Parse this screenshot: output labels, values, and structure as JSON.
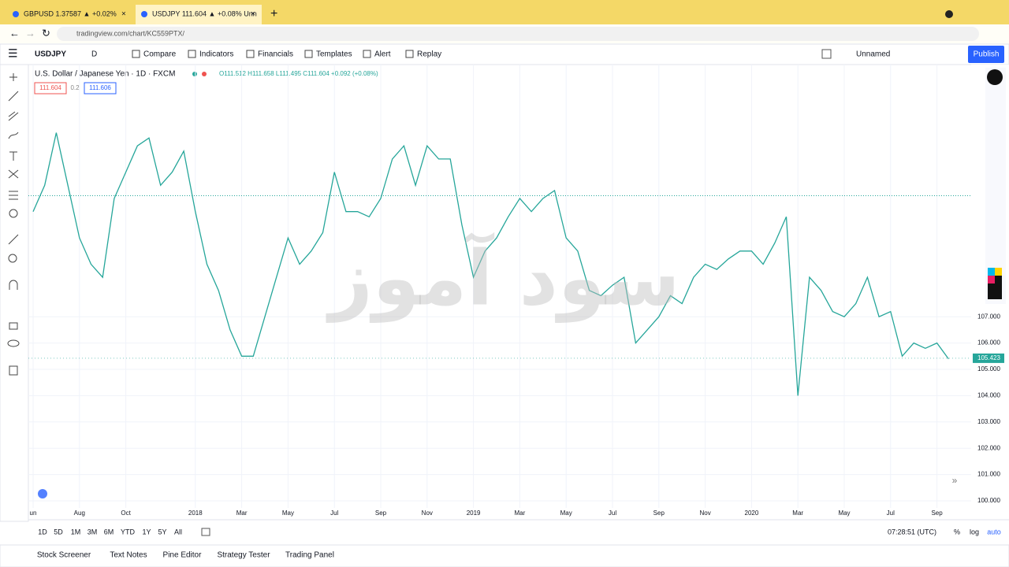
{
  "browser": {
    "tabs": [
      "GBPUSD 1.37587 ▲ +0.02%",
      "USDJPY 111.604 ▲ +0.08% Unn"
    ],
    "url": "tradingview.com/chart/KC559PTX/"
  },
  "toolbar": {
    "symbol": "USDJPY",
    "interval": "D",
    "buttons": [
      "Compare",
      "Indicators",
      "Financials",
      "Templates",
      "Alert",
      "Replay"
    ],
    "layout_name": "Unnamed",
    "publish": "Publish"
  },
  "legend": {
    "title": "U.S. Dollar / Japanese Yen · 1D · FXCM",
    "ohlc": "O111.512 H111.658 L111.495 C111.604 +0.092 (+0.08%)",
    "bid": "111.604",
    "spread": "0.2",
    "ask": "111.606"
  },
  "watermark": "سود آموز",
  "chart": {
    "type": "line",
    "color": "#26a69a",
    "x_labels": [
      "un",
      null,
      null,
      null,
      "Aug",
      null,
      null,
      null,
      "Oct",
      null,
      null,
      null,
      null,
      null,
      "2018",
      null,
      null,
      null,
      "Mar",
      null,
      null,
      null,
      "May",
      null,
      null,
      null,
      "Jul",
      null,
      null,
      null,
      "Sep",
      null,
      null,
      null,
      "Nov",
      null,
      null,
      null,
      "2019",
      null,
      null,
      null,
      "Mar",
      null,
      null,
      null,
      "May",
      null,
      null,
      null,
      "Jul",
      null,
      null,
      null,
      "Sep",
      null,
      null,
      null,
      "Nov",
      null,
      null,
      null,
      "2020",
      null,
      null,
      null,
      "Mar",
      null,
      null,
      null,
      "May",
      null,
      null,
      null,
      "Jul",
      null,
      null,
      null,
      "Sep",
      null
    ],
    "values": [
      111,
      112,
      114,
      112,
      110,
      109,
      108.5,
      111.5,
      112.5,
      113.5,
      113.8,
      112,
      112.5,
      113.3,
      111,
      109,
      108,
      106.5,
      105.5,
      105.5,
      107,
      108.5,
      110,
      109,
      109.5,
      110.2,
      112.5,
      111,
      111,
      110.8,
      111.5,
      113,
      113.5,
      112,
      113.5,
      113,
      113,
      110.5,
      108.5,
      109.5,
      110,
      110.8,
      111.5,
      111,
      111.5,
      111.8,
      110,
      109.5,
      108,
      107.8,
      108.2,
      108.5,
      106,
      106.5,
      107,
      107.8,
      107.5,
      108.5,
      109,
      108.8,
      109.2,
      109.5,
      109.5,
      109,
      109.8,
      110.8,
      104,
      108.5,
      108,
      107.2,
      107,
      107.5,
      108.5,
      107,
      107.2,
      105.5,
      106,
      105.8,
      106,
      105.4
    ],
    "ylim": [
      99.73,
      116.59
    ],
    "yticks": [
      {
        "value": 100,
        "label": "100.000"
      },
      {
        "value": 101,
        "label": "101.000"
      },
      {
        "value": 102,
        "label": "102.000"
      },
      {
        "value": 103,
        "label": "103.000"
      },
      {
        "value": 104,
        "label": "104.000"
      },
      {
        "value": 105,
        "label": "105.000"
      },
      {
        "value": 106,
        "label": "106.000"
      },
      {
        "value": 107,
        "label": "107.000"
      }
    ],
    "last_price": 105.423,
    "reference_price": 111.604
  },
  "bottom_bar": {
    "ranges": [
      "1D",
      "5D",
      "1M",
      "3M",
      "6M",
      "YTD",
      "1Y",
      "5Y",
      "All"
    ],
    "clock": "07:28:51 (UTC)",
    "options": [
      "%",
      "log",
      "auto"
    ]
  },
  "panels": [
    "Stock Screener",
    "Text Notes",
    "Pine Editor",
    "Strategy Tester",
    "Trading Panel"
  ]
}
